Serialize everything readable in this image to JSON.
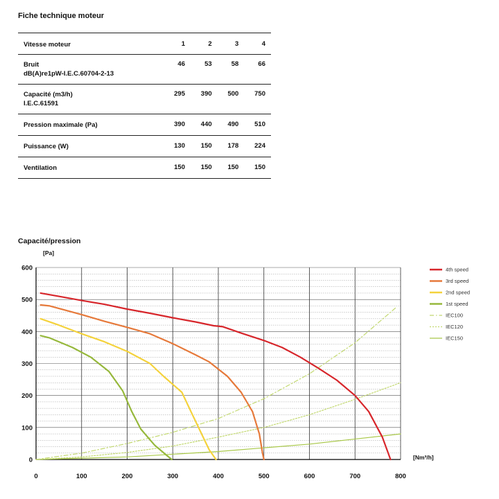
{
  "spec_title": "Fiche technique moteur",
  "spec_table": {
    "rows": [
      {
        "label": [
          "Vitesse moteur"
        ],
        "values": [
          "1",
          "2",
          "3",
          "4"
        ]
      },
      {
        "label": [
          "Bruit",
          "dB(A)re1pW-I.E.C.60704-2-13"
        ],
        "values": [
          "46",
          "53",
          "58",
          "66"
        ]
      },
      {
        "label": [
          "Capacité (m3/h)",
          "I.E.C.61591"
        ],
        "values": [
          "295",
          "390",
          "500",
          "750"
        ]
      },
      {
        "label": [
          "Pression maximale (Pa)"
        ],
        "values": [
          "390",
          "440",
          "490",
          "510"
        ]
      },
      {
        "label": [
          "Puissance (W)"
        ],
        "values": [
          "130",
          "150",
          "178",
          "224"
        ]
      },
      {
        "label": [
          "Ventilation"
        ],
        "values": [
          "150",
          "150",
          "150",
          "150"
        ]
      }
    ]
  },
  "chart_data": {
    "type": "line",
    "title": "Capacité/pression",
    "ylabel": "[Pa]",
    "xlabel": "[Nm³/h]",
    "xlim": [
      0,
      800
    ],
    "ylim": [
      0,
      600
    ],
    "xticks": [
      "0",
      "100",
      "200",
      "300",
      "400",
      "500",
      "600",
      "700",
      "800"
    ],
    "yticks": [
      "0",
      "100",
      "200",
      "300",
      "400",
      "500",
      "600"
    ],
    "grid": true,
    "legend_position": "right",
    "series": [
      {
        "name": "4th speed",
        "color": "#d7262b",
        "dash": "solid",
        "points": [
          [
            10,
            520
          ],
          [
            50,
            510
          ],
          [
            100,
            497
          ],
          [
            150,
            485
          ],
          [
            200,
            470
          ],
          [
            250,
            457
          ],
          [
            300,
            443
          ],
          [
            350,
            430
          ],
          [
            390,
            418
          ],
          [
            410,
            415
          ],
          [
            450,
            395
          ],
          [
            500,
            372
          ],
          [
            540,
            350
          ],
          [
            580,
            320
          ],
          [
            620,
            285
          ],
          [
            660,
            248
          ],
          [
            700,
            200
          ],
          [
            730,
            150
          ],
          [
            760,
            70
          ],
          [
            778,
            0
          ]
        ]
      },
      {
        "name": "3rd speed",
        "color": "#e6793a",
        "dash": "solid",
        "points": [
          [
            10,
            483
          ],
          [
            30,
            480
          ],
          [
            100,
            453
          ],
          [
            150,
            432
          ],
          [
            200,
            413
          ],
          [
            250,
            393
          ],
          [
            300,
            362
          ],
          [
            350,
            327
          ],
          [
            380,
            305
          ],
          [
            420,
            260
          ],
          [
            450,
            210
          ],
          [
            475,
            150
          ],
          [
            490,
            80
          ],
          [
            497,
            20
          ],
          [
            500,
            0
          ]
        ]
      },
      {
        "name": "2nd speed",
        "color": "#f4d23c",
        "dash": "solid",
        "points": [
          [
            10,
            440
          ],
          [
            50,
            420
          ],
          [
            100,
            393
          ],
          [
            150,
            368
          ],
          [
            200,
            338
          ],
          [
            250,
            300
          ],
          [
            280,
            260
          ],
          [
            320,
            210
          ],
          [
            340,
            150
          ],
          [
            360,
            90
          ],
          [
            380,
            30
          ],
          [
            395,
            0
          ]
        ]
      },
      {
        "name": "1st speed",
        "color": "#96b83b",
        "dash": "solid",
        "points": [
          [
            10,
            387
          ],
          [
            30,
            380
          ],
          [
            80,
            350
          ],
          [
            120,
            320
          ],
          [
            160,
            275
          ],
          [
            190,
            215
          ],
          [
            210,
            150
          ],
          [
            230,
            95
          ],
          [
            260,
            45
          ],
          [
            285,
            15
          ],
          [
            298,
            0
          ]
        ]
      },
      {
        "name": "IEC100",
        "color": "#c2d86f",
        "dash": "dashdot",
        "points": [
          [
            0,
            0
          ],
          [
            100,
            20
          ],
          [
            200,
            50
          ],
          [
            300,
            85
          ],
          [
            400,
            128
          ],
          [
            500,
            190
          ],
          [
            600,
            268
          ],
          [
            700,
            365
          ],
          [
            790,
            475
          ]
        ]
      },
      {
        "name": "IEC120",
        "color": "#c2d86f",
        "dash": "dotted",
        "points": [
          [
            0,
            0
          ],
          [
            100,
            8
          ],
          [
            200,
            22
          ],
          [
            300,
            42
          ],
          [
            400,
            70
          ],
          [
            500,
            100
          ],
          [
            600,
            140
          ],
          [
            700,
            188
          ],
          [
            800,
            240
          ]
        ]
      },
      {
        "name": "IEC150",
        "color": "#a8c847",
        "dash": "solid",
        "points": [
          [
            0,
            0
          ],
          [
            200,
            8
          ],
          [
            400,
            25
          ],
          [
            600,
            48
          ],
          [
            800,
            80
          ]
        ]
      }
    ]
  }
}
